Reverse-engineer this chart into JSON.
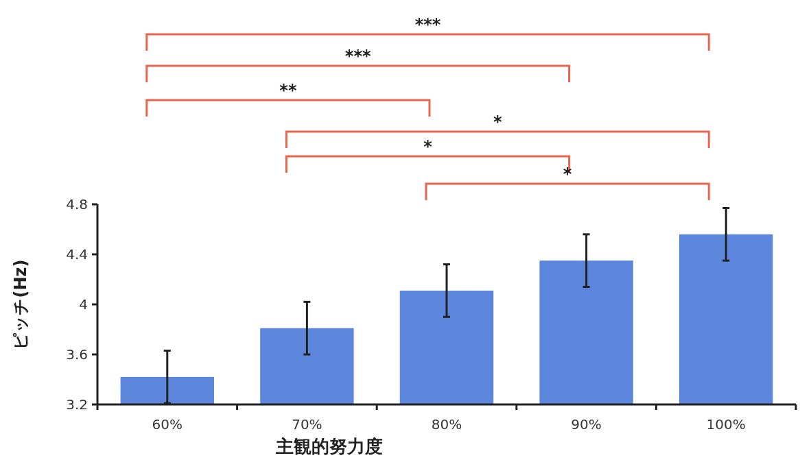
{
  "chart_data": {
    "type": "bar",
    "xlabel": "主観的努力度",
    "ylabel": "ピッチ(Hz)",
    "categories": [
      "60%",
      "70%",
      "80%",
      "90%",
      "100%"
    ],
    "values": [
      3.42,
      3.81,
      4.11,
      4.35,
      4.56
    ],
    "errors": [
      0.21,
      0.21,
      0.21,
      0.21,
      0.21
    ],
    "color": "#5b86dc",
    "ylim": [
      3.2,
      4.8
    ],
    "yticks": [
      3.2,
      3.6,
      4,
      4.4,
      4.8
    ],
    "grid": false,
    "annotations": [
      "***",
      "***",
      "**",
      "*",
      "*",
      "*"
    ]
  }
}
